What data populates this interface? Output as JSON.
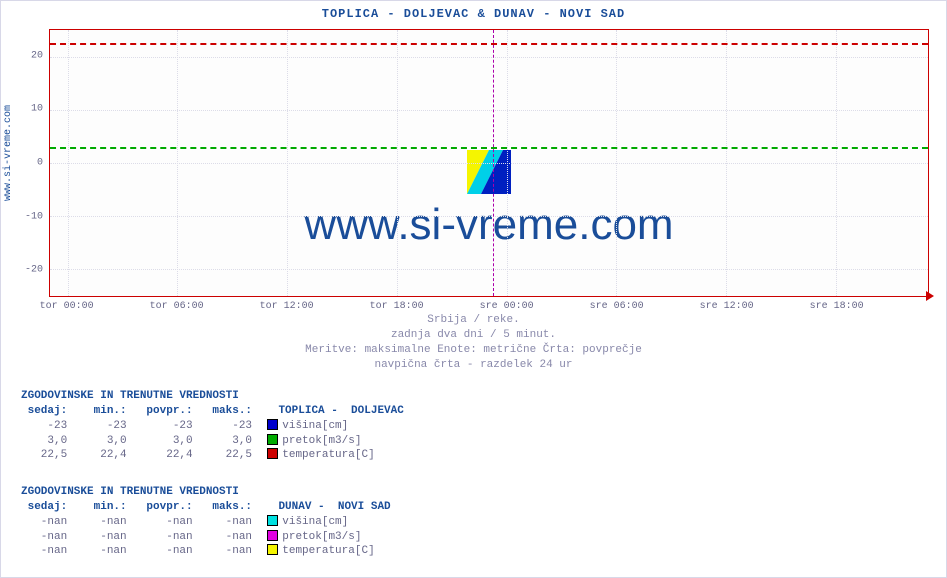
{
  "title": "TOPLICA -  DOLJEVAC &  DUNAV -  NOVI SAD",
  "ylabel": "www.si-vreme.com",
  "watermark": "www.si-vreme.com",
  "chart": {
    "type": "line",
    "background_color": "#fdfdfd",
    "border_color": "#cc0000",
    "grid_color": "#dcdce8",
    "ylim": [
      -25,
      25
    ],
    "yticks": [
      -20,
      -10,
      0,
      10,
      20
    ],
    "xlabels": [
      "tor 00:00",
      "tor 06:00",
      "tor 12:00",
      "tor 18:00",
      "sre 00:00",
      "sre 06:00",
      "sre 12:00",
      "sre 18:00"
    ],
    "divider24_x_ratio": 0.504,
    "series": [
      {
        "name": "temperatura",
        "color": "#cc0000",
        "style": "dashed",
        "y": 22.5
      },
      {
        "name": "pretok",
        "color": "#00aa00",
        "style": "dashed",
        "y": 3.0
      }
    ]
  },
  "caption": {
    "l1": "Srbija / reke.",
    "l2": "zadnja dva dni / 5 minut.",
    "l3": "Meritve: maksimalne  Enote: metrične  Črta: povprečje",
    "l4": "navpična črta - razdelek 24 ur"
  },
  "legend1": {
    "header": "ZGODOVINSKE IN TRENUTNE VREDNOSTI",
    "cols": "sedaj:    min.:   povpr.:   maks.:",
    "station": "TOPLICA -  DOLJEVAC",
    "rows": [
      {
        "sedaj": "-23",
        "min": "-23",
        "povpr": "-23",
        "maks": "-23",
        "swatch": "#0000cc",
        "label": "višina[cm]"
      },
      {
        "sedaj": "3,0",
        "min": "3,0",
        "povpr": "3,0",
        "maks": "3,0",
        "swatch": "#00aa00",
        "label": "pretok[m3/s]"
      },
      {
        "sedaj": "22,5",
        "min": "22,4",
        "povpr": "22,4",
        "maks": "22,5",
        "swatch": "#cc0000",
        "label": "temperatura[C]"
      }
    ]
  },
  "legend2": {
    "header": "ZGODOVINSKE IN TRENUTNE VREDNOSTI",
    "cols": "sedaj:    min.:   povpr.:   maks.:",
    "station": "DUNAV -  NOVI SAD",
    "rows": [
      {
        "sedaj": "-nan",
        "min": "-nan",
        "povpr": "-nan",
        "maks": "-nan",
        "swatch": "#00e0e0",
        "label": "višina[cm]"
      },
      {
        "sedaj": "-nan",
        "min": "-nan",
        "povpr": "-nan",
        "maks": "-nan",
        "swatch": "#e000e0",
        "label": "pretok[m3/s]"
      },
      {
        "sedaj": "-nan",
        "min": "-nan",
        "povpr": "-nan",
        "maks": "-nan",
        "swatch": "#f5f500",
        "label": "temperatura[C]"
      }
    ]
  }
}
